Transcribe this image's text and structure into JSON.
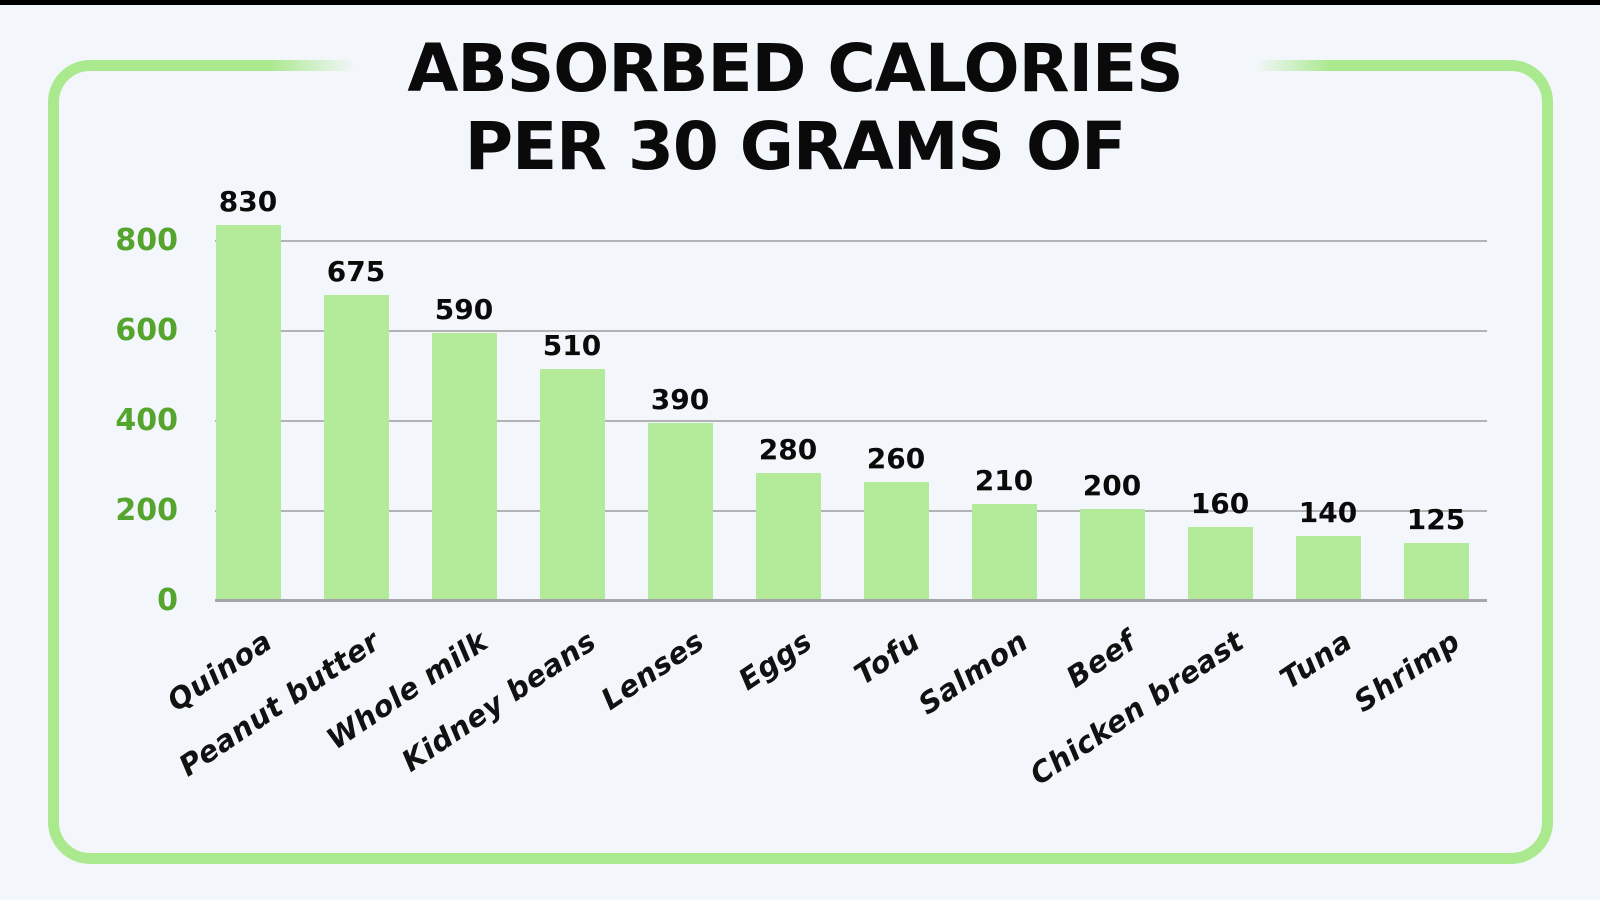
{
  "title": {
    "line1": "ABSORBED CALORIES",
    "line2": "PER 30 GRAMS OF"
  },
  "chart_data": {
    "type": "bar",
    "title": "ABSORBED CALORIES PER 30 GRAMS OF",
    "categories": [
      "Quinoa",
      "Peanut butter",
      "Whole milk",
      "Kidney beans",
      "Lenses",
      "Eggs",
      "Tofu",
      "Salmon",
      "Beef",
      "Chicken breast",
      "Tuna",
      "Shrimp"
    ],
    "values": [
      830,
      675,
      590,
      510,
      390,
      280,
      260,
      210,
      200,
      160,
      140,
      125
    ],
    "value_labels": [
      "830",
      "675",
      "590",
      "510",
      "390",
      "280",
      "260",
      "210",
      "200",
      "160",
      "140",
      "125"
    ],
    "xlabel": "",
    "ylabel": "",
    "ylim": [
      0,
      900
    ],
    "yticks": [
      0,
      200,
      400,
      600,
      800
    ],
    "grid": "horizontal",
    "legend": "none",
    "bar_color": "#b4eb9a",
    "value_label_color": "#0a0a0a",
    "tick_label_color": "#54a42d",
    "category_label_color": "#111111"
  },
  "style": {
    "background": "#f3f6fb",
    "card_border_color": "#abe98f",
    "gridline_color": "#b3b3b6",
    "baseline_color": "#a6a6aa",
    "top_strip_color": "#000000",
    "title_color": "#0a0a0a"
  }
}
